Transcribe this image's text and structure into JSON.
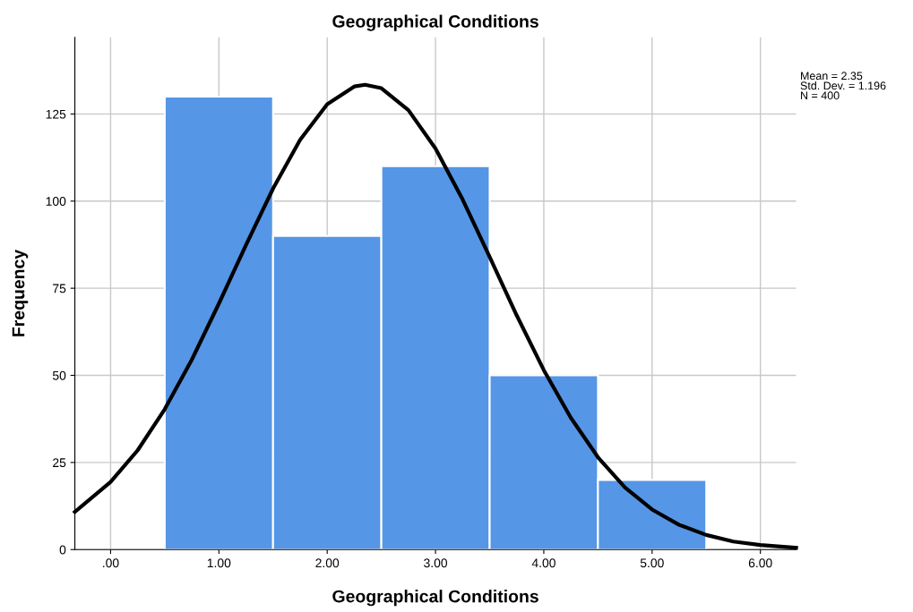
{
  "chart_data": {
    "type": "histogram",
    "title": "Geographical Conditions",
    "xlabel": "Geographical Conditions",
    "ylabel": "Frequency",
    "series": [
      {
        "bins": [
          0.5,
          1.5,
          2.5,
          3.5,
          4.5,
          5.5
        ],
        "values": [
          130,
          90,
          110,
          50,
          20
        ],
        "color": "#5596e6"
      },
      {
        "type": "line",
        "color": "#000000",
        "x": [
          -0.33,
          0,
          0.25,
          0.5,
          0.75,
          1.0,
          1.25,
          1.5,
          1.75,
          2.0,
          2.25,
          2.35,
          2.5,
          2.75,
          3.0,
          3.25,
          3.5,
          3.75,
          4.0,
          4.25,
          4.5,
          4.75,
          5.0,
          5.25,
          5.5,
          5.75,
          6.0,
          6.33
        ],
        "values": [
          10.8,
          19.4,
          28.5,
          40.3,
          54.5,
          70.6,
          87.4,
          103.6,
          117.6,
          127.8,
          132.9,
          133.4,
          132.4,
          126.1,
          115.1,
          100.5,
          84.0,
          67.2,
          51.5,
          37.8,
          26.5,
          17.8,
          11.5,
          7.1,
          4.2,
          2.3,
          1.3,
          0.5
        ]
      }
    ],
    "xlim": [
      -0.33,
      6.33
    ],
    "xticks": [
      {
        "value": 0,
        "label": ".00"
      },
      {
        "value": 1,
        "label": "1.00"
      },
      {
        "value": 2,
        "label": "2.00"
      },
      {
        "value": 3,
        "label": "3.00"
      },
      {
        "value": 4,
        "label": "4.00"
      },
      {
        "value": 5,
        "label": "5.00"
      },
      {
        "value": 6,
        "label": "6.00"
      }
    ],
    "ylim": [
      0,
      147
    ],
    "yticks": [
      0,
      25,
      50,
      75,
      100,
      125
    ],
    "grid": true,
    "annotations": [
      "Mean = 2.35",
      "Std. Dev. = 1.196",
      "N = 400"
    ]
  }
}
